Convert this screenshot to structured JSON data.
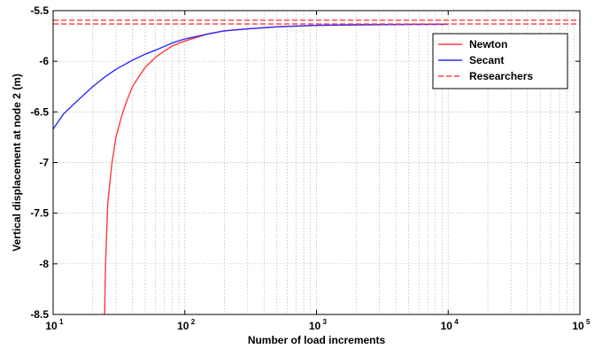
{
  "chart_data": {
    "type": "line",
    "title": "",
    "xlabel": "Number of load increments",
    "ylabel": "Vertical displacement at node 2 (m)",
    "xscale": "log",
    "xlim": [
      10,
      100000
    ],
    "ylim": [
      -8.5,
      -5.5
    ],
    "grid": true,
    "legend_position": "top-right",
    "x_ticks": [
      {
        "value": 10,
        "base": "10",
        "exp": "1"
      },
      {
        "value": 100,
        "base": "10",
        "exp": "2"
      },
      {
        "value": 1000,
        "base": "10",
        "exp": "3"
      },
      {
        "value": 10000,
        "base": "10",
        "exp": "4"
      },
      {
        "value": 100000,
        "base": "10",
        "exp": "5"
      }
    ],
    "y_ticks": [
      {
        "value": -5.5,
        "label": "-5.5"
      },
      {
        "value": -6,
        "label": "-6"
      },
      {
        "value": -6.5,
        "label": "-6.5"
      },
      {
        "value": -7,
        "label": "-7"
      },
      {
        "value": -7.5,
        "label": "-7.5"
      },
      {
        "value": -8,
        "label": "-8"
      },
      {
        "value": -8.5,
        "label": "-8.5"
      }
    ],
    "series": [
      {
        "name": "Newton",
        "color": "#ff3b3b",
        "style": "solid",
        "x": [
          24.6,
          25,
          26,
          28,
          30,
          33,
          36,
          40,
          45,
          50,
          60,
          70,
          80,
          100,
          150,
          200,
          300,
          500,
          1000,
          2000,
          5000,
          10000
        ],
        "y": [
          -8.5,
          -8.0,
          -7.4,
          -7.0,
          -6.75,
          -6.55,
          -6.4,
          -6.25,
          -6.15,
          -6.06,
          -5.96,
          -5.9,
          -5.85,
          -5.8,
          -5.73,
          -5.7,
          -5.68,
          -5.66,
          -5.645,
          -5.64,
          -5.636,
          -5.635
        ]
      },
      {
        "name": "Secant",
        "color": "#2b2bff",
        "style": "solid",
        "x": [
          10,
          12,
          15,
          20,
          25,
          30,
          40,
          50,
          60,
          80,
          100,
          150,
          200,
          300,
          500,
          1000,
          2000,
          5000,
          10000
        ],
        "y": [
          -6.67,
          -6.52,
          -6.4,
          -6.25,
          -6.15,
          -6.08,
          -5.99,
          -5.93,
          -5.89,
          -5.82,
          -5.78,
          -5.73,
          -5.7,
          -5.68,
          -5.66,
          -5.645,
          -5.64,
          -5.636,
          -5.635
        ]
      },
      {
        "name": "Researchers",
        "color": "#ff3b3b",
        "style": "dashed",
        "x": [
          10,
          100000
        ],
        "y": [
          -5.595,
          -5.595
        ]
      },
      {
        "name": "",
        "color": "#ff3b3b",
        "style": "dashed",
        "x": [
          10,
          100000
        ],
        "y": [
          -5.632,
          -5.632
        ]
      }
    ]
  }
}
